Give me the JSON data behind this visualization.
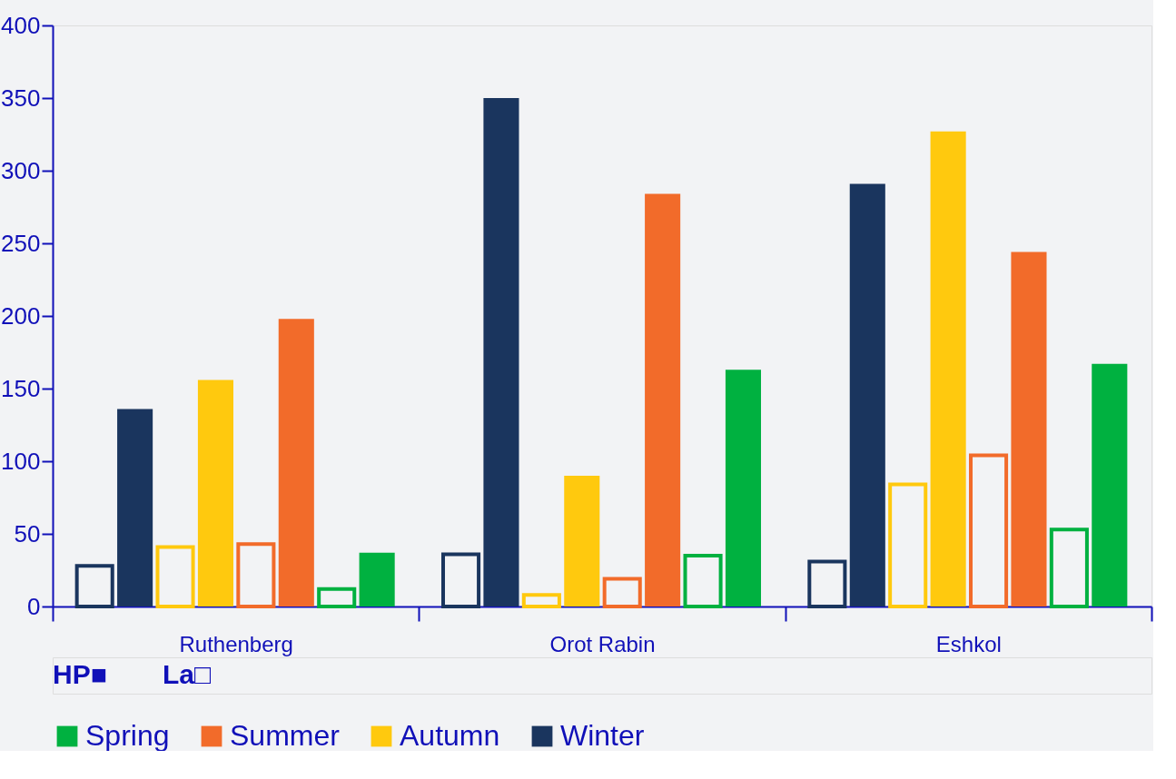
{
  "chart_data": {
    "type": "bar",
    "categories": [
      "Ruthenberg",
      "Orot Rabin",
      "Eshkol"
    ],
    "series": [
      {
        "color": "#1a355e",
        "values": [
          28,
          36,
          31
        ]
      },
      {
        "name": "Winter",
        "color": "#1a355e",
        "values": [
          136,
          350,
          291
        ]
      },
      {
        "color": "#ffc90e",
        "values": [
          41,
          8,
          84
        ]
      },
      {
        "name": "Autumn",
        "color": "#ffc90e",
        "values": [
          156,
          90,
          327
        ]
      },
      {
        "color": "#f26b2a",
        "values": [
          43,
          19,
          104
        ]
      },
      {
        "name": "Summer",
        "color": "#f26b2a",
        "values": [
          198,
          284,
          244
        ]
      },
      {
        "color": "#00b140",
        "values": [
          12,
          35,
          53
        ]
      },
      {
        "name": "Spring",
        "color": "#00b140",
        "values": [
          37,
          163,
          167
        ]
      }
    ],
    "ylim": [
      0,
      400
    ],
    "yticks": [
      0,
      50,
      100,
      150,
      200,
      250,
      300,
      350,
      400
    ],
    "annotations": [
      "HP■",
      "La□"
    ],
    "legend": "bottom",
    "grid": false
  }
}
